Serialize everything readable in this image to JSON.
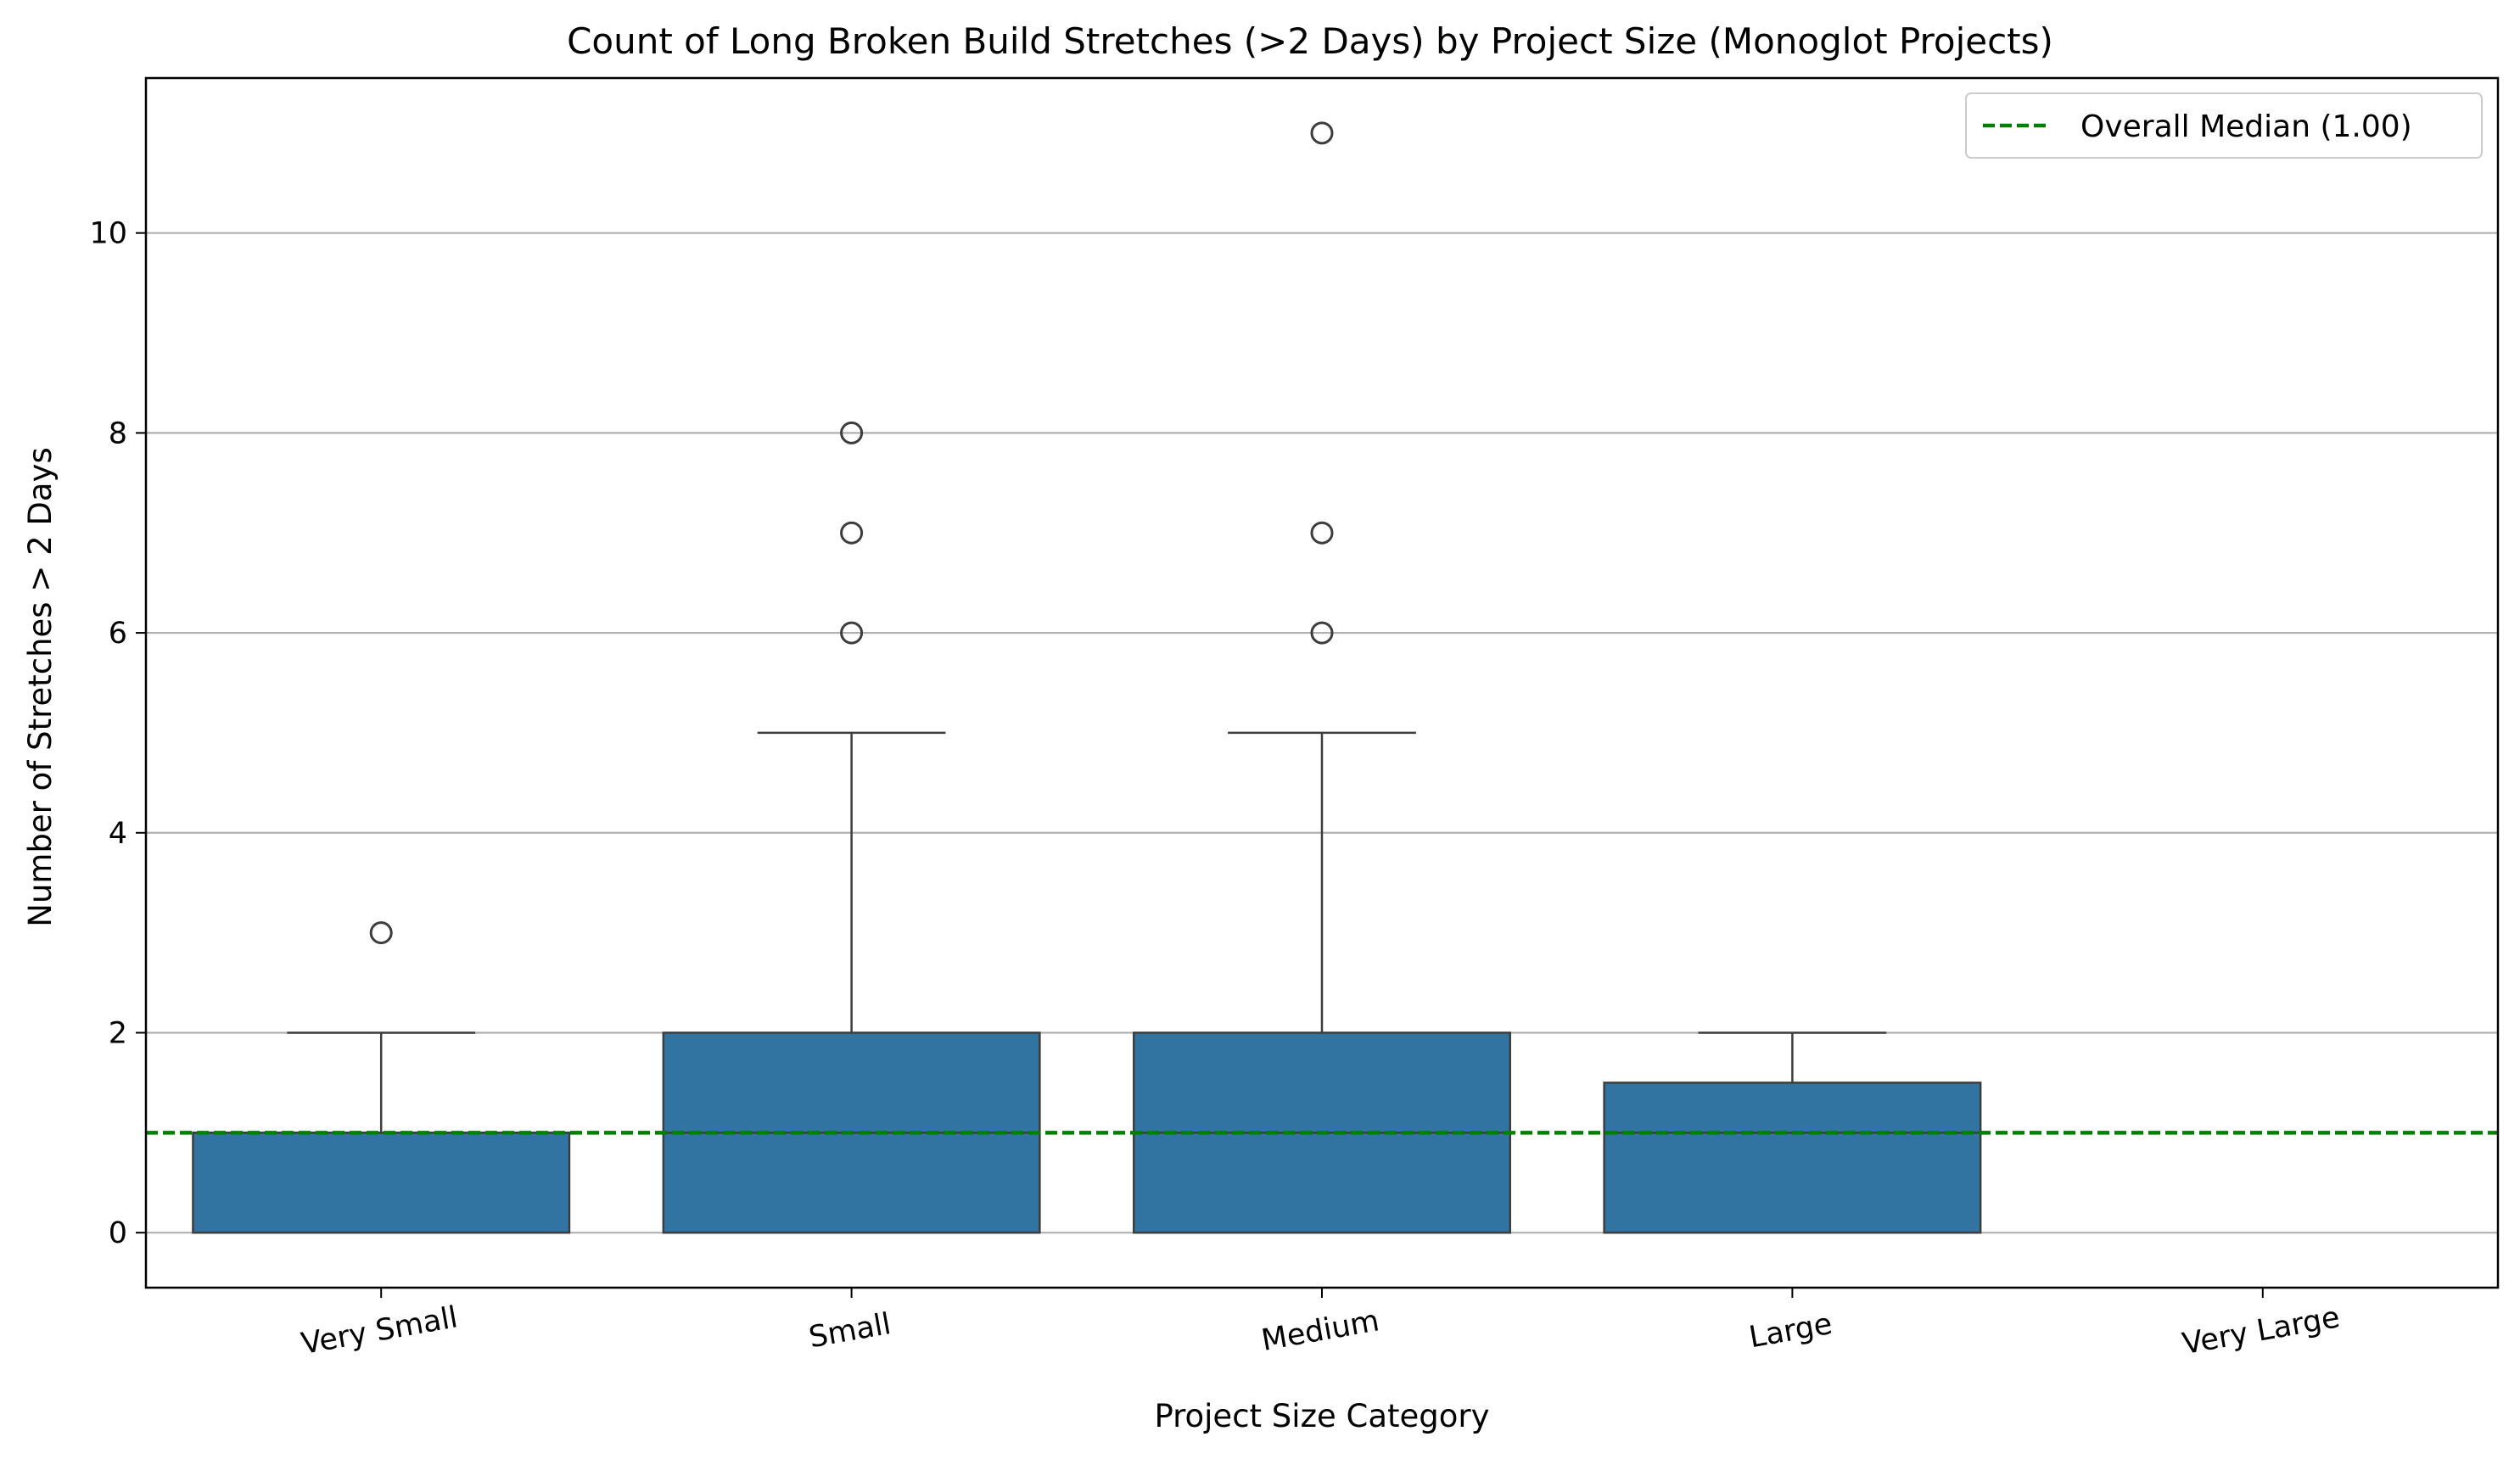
{
  "chart_data": {
    "type": "box",
    "title": "Count of Long Broken Build Stretches (>2 Days) by Project Size (Monoglot Projects)",
    "xlabel": "Project Size Category",
    "ylabel": "Number of Stretches > 2 Days",
    "categories": [
      "Very Small",
      "Small",
      "Medium",
      "Large",
      "Very Large"
    ],
    "ylim": [
      -0.55,
      11.55
    ],
    "yticks": [
      0,
      2,
      4,
      6,
      8,
      10
    ],
    "ytick_labels": [
      "0",
      "2",
      "4",
      "6",
      "8",
      "10"
    ],
    "grid": "horizontal",
    "legend_position": "top-right",
    "box_color": "#3274a1",
    "edge_color": "#3d3d3d",
    "boxes": [
      {
        "category": "Very Small",
        "whisker_low": 0,
        "q1": 0,
        "median": 1,
        "q3": 1,
        "whisker_high": 2,
        "outliers": [
          3
        ]
      },
      {
        "category": "Small",
        "whisker_low": 0,
        "q1": 0,
        "median": 1,
        "q3": 2,
        "whisker_high": 5,
        "outliers": [
          6,
          7,
          8
        ]
      },
      {
        "category": "Medium",
        "whisker_low": 0,
        "q1": 0,
        "median": 1,
        "q3": 2,
        "whisker_high": 5,
        "outliers": [
          6,
          7,
          11
        ]
      },
      {
        "category": "Large",
        "whisker_low": 0,
        "q1": 0,
        "median": 1,
        "q3": 1.5,
        "whisker_high": 2,
        "outliers": []
      },
      {
        "category": "Very Large",
        "whisker_low": null,
        "q1": null,
        "median": null,
        "q3": null,
        "whisker_high": null,
        "outliers": []
      }
    ],
    "reference_line": {
      "label": "Overall Median (1.00)",
      "value": 1.0,
      "color": "#008000",
      "style": "dashed"
    }
  }
}
